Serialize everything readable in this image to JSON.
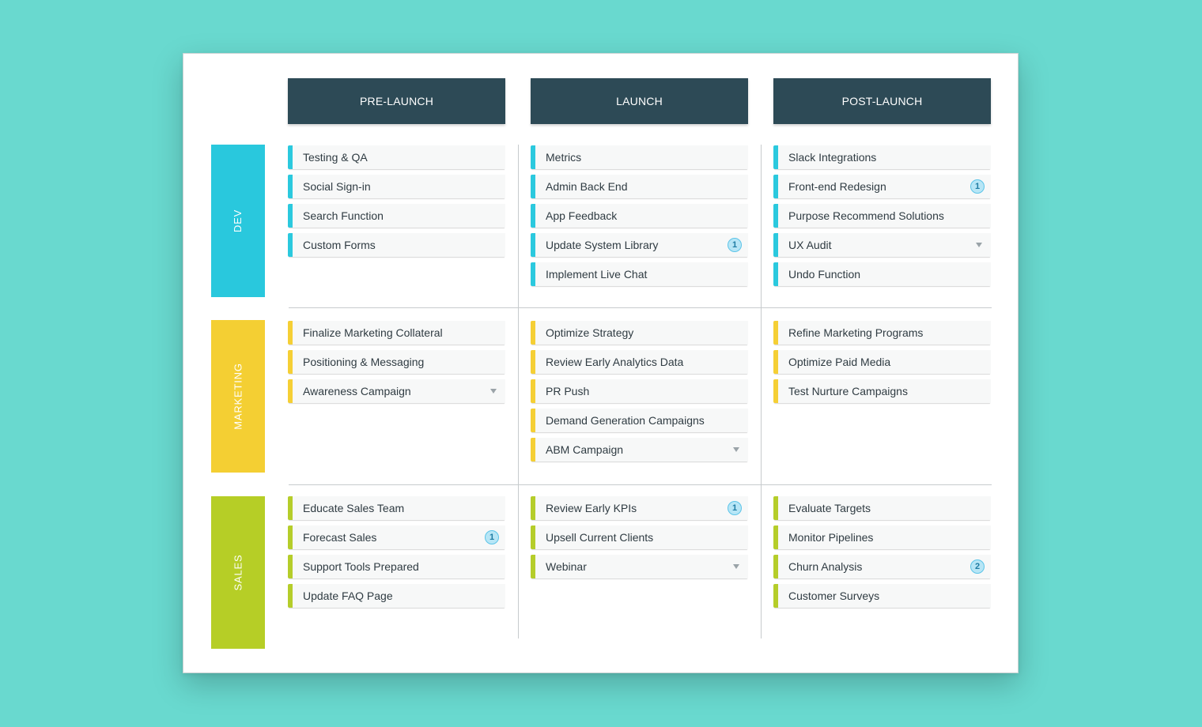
{
  "columns": [
    "PRE-LAUNCH",
    "LAUNCH",
    "POST-LAUNCH"
  ],
  "rows": [
    {
      "key": "dev",
      "label": "DEV",
      "color": "#29C8DD",
      "cells": [
        [
          {
            "label": "Testing & QA"
          },
          {
            "label": "Social Sign-in"
          },
          {
            "label": "Search Function"
          },
          {
            "label": "Custom Forms"
          }
        ],
        [
          {
            "label": "Metrics"
          },
          {
            "label": "Admin Back End"
          },
          {
            "label": "App Feedback"
          },
          {
            "label": "Update System Library",
            "badge": "1"
          },
          {
            "label": "Implement Live Chat"
          }
        ],
        [
          {
            "label": "Slack Integrations"
          },
          {
            "label": "Front-end Redesign",
            "badge": "1"
          },
          {
            "label": "Purpose Recommend Solutions"
          },
          {
            "label": "UX Audit",
            "dropdown": true
          },
          {
            "label": "Undo Function"
          }
        ]
      ]
    },
    {
      "key": "marketing",
      "label": "MARKETING",
      "color": "#F4CF33",
      "cells": [
        [
          {
            "label": "Finalize Marketing Collateral"
          },
          {
            "label": "Positioning & Messaging"
          },
          {
            "label": "Awareness Campaign",
            "dropdown": true
          }
        ],
        [
          {
            "label": "Optimize Strategy"
          },
          {
            "label": "Review Early Analytics Data"
          },
          {
            "label": "PR Push"
          },
          {
            "label": "Demand Generation Campaigns"
          },
          {
            "label": "ABM Campaign",
            "dropdown": true
          }
        ],
        [
          {
            "label": "Refine Marketing Programs"
          },
          {
            "label": "Optimize Paid Media"
          },
          {
            "label": "Test Nurture Campaigns"
          }
        ]
      ]
    },
    {
      "key": "sales",
      "label": "SALES",
      "color": "#B6CE26",
      "cells": [
        [
          {
            "label": "Educate Sales Team"
          },
          {
            "label": "Forecast Sales",
            "badge": "1"
          },
          {
            "label": "Support Tools Prepared"
          },
          {
            "label": "Update FAQ Page"
          }
        ],
        [
          {
            "label": "Review Early KPIs",
            "badge": "1"
          },
          {
            "label": "Upsell Current Clients"
          },
          {
            "label": "Webinar",
            "dropdown": true
          }
        ],
        [
          {
            "label": "Evaluate Targets"
          },
          {
            "label": "Monitor Pipelines"
          },
          {
            "label": "Churn Analysis",
            "badge": "2"
          },
          {
            "label": "Customer Surveys"
          }
        ]
      ]
    }
  ],
  "colors": {
    "background": "#69D9CF",
    "header": "#2D4A56",
    "card": "#F7F8F8",
    "badge_fill": "#B7E6F6",
    "badge_text": "#1F7CA3"
  }
}
